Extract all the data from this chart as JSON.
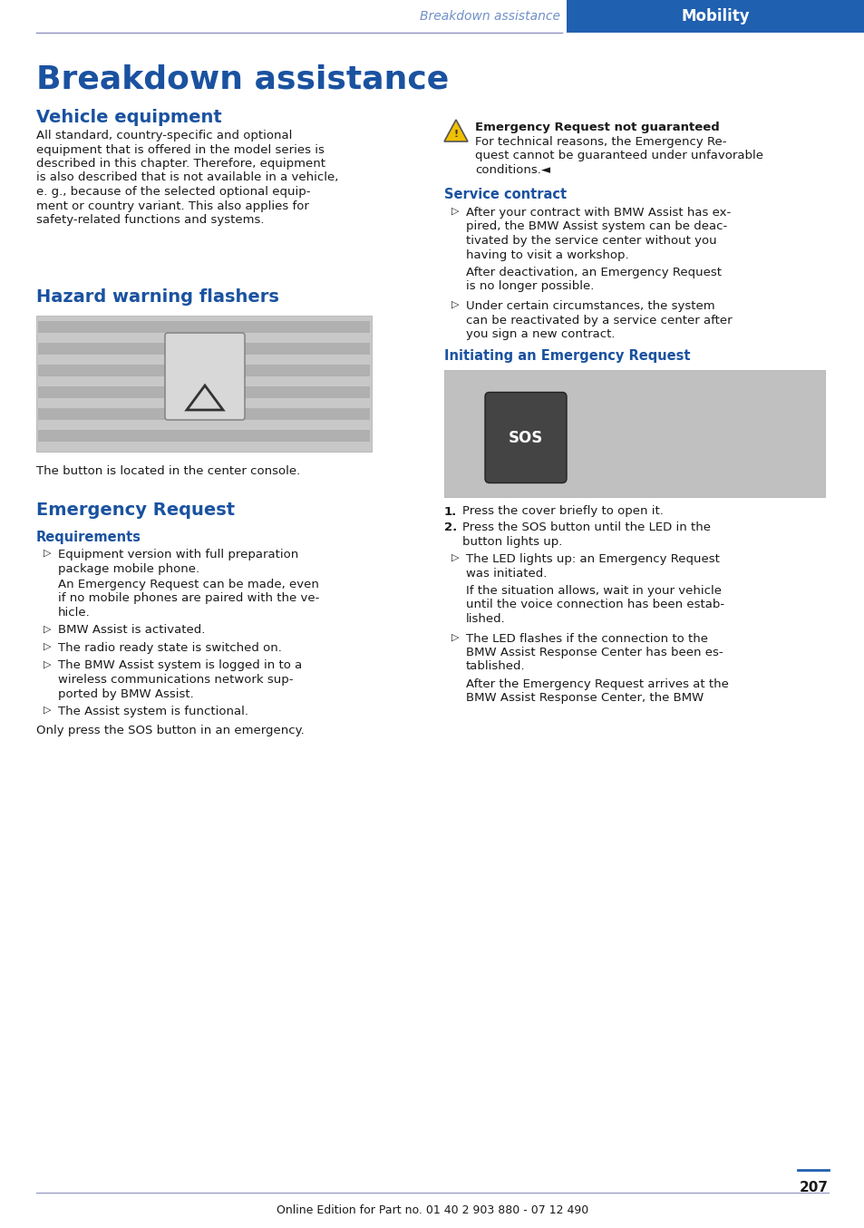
{
  "page_bg": "#ffffff",
  "header_bar_color": "#2060b0",
  "header_text_left": "Breakdown assistance",
  "header_text_right": "Mobility",
  "header_left_color": "#7090c8",
  "title_main": "Breakdown assistance",
  "title_color": "#1a52a0",
  "section1_title": "Vehicle equipment",
  "section1_lines": [
    "All standard, country-specific and optional",
    "equipment that is offered in the model series is",
    "described in this chapter. Therefore, equipment",
    "is also described that is not available in a vehicle,",
    "e. g., because of the selected optional equip-",
    "ment or country variant. This also applies for",
    "safety-related functions and systems."
  ],
  "section2_title": "Hazard warning flashers",
  "section2_caption": "The button is located in the center console.",
  "section3_title": "Emergency Request",
  "section3_sub": "Requirements",
  "section3_bullet1_lines": [
    "Equipment version with full preparation",
    "package mobile phone."
  ],
  "section3_note_lines": [
    "An Emergency Request can be made, even",
    "if no mobile phones are paired with the ve-",
    "hicle."
  ],
  "section3_bullet2": "BMW Assist is activated.",
  "section3_bullet3": "The radio ready state is switched on.",
  "section3_bullet4_lines": [
    "The BMW Assist system is logged in to a",
    "wireless communications network sup-",
    "ported by BMW Assist."
  ],
  "section3_bullet5": "The Assist system is functional.",
  "section3_only": "Only press the SOS button in an emergency.",
  "right_warn_title": "Emergency Request not guaranteed",
  "right_warn_lines": [
    "For technical reasons, the Emergency Re-",
    "quest cannot be guaranteed under unfavorable",
    "conditions.◄"
  ],
  "right_s4_title": "Service contract",
  "right_s4_b1_lines": [
    "After your contract with BMW Assist has ex-",
    "pired, the BMW Assist system can be deac-",
    "tivated by the service center without you",
    "having to visit a workshop."
  ],
  "right_s4_note_lines": [
    "After deactivation, an Emergency Request",
    "is no longer possible."
  ],
  "right_s4_b2_lines": [
    "Under certain circumstances, the system",
    "can be reactivated by a service center after",
    "you sign a new contract."
  ],
  "right_s5_title": "Initiating an Emergency Request",
  "right_s5_step1": "Press the cover briefly to open it.",
  "right_s5_step2_lines": [
    "Press the SOS button until the LED in the",
    "button lights up."
  ],
  "right_s5_b1_lines": [
    "The LED lights up: an Emergency Request",
    "was initiated."
  ],
  "right_s5_note1_lines": [
    "If the situation allows, wait in your vehicle",
    "until the voice connection has been estab-",
    "lished."
  ],
  "right_s5_b2_lines": [
    "The LED flashes if the connection to the",
    "BMW Assist Response Center has been es-",
    "tablished."
  ],
  "right_s5_note2_lines": [
    "After the Emergency Request arrives at the",
    "BMW Assist Response Center, the BMW"
  ],
  "footer_text": "Online Edition for Part no. 01 40 2 903 880 - 07 12 490",
  "page_number": "207",
  "section_color": "#1a52a0",
  "sub_color": "#1a52a0",
  "text_color": "#1a1a1a",
  "line_color": "#9090c0"
}
